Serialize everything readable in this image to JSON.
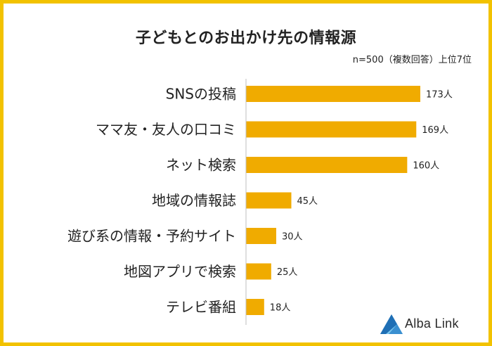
{
  "chart_data": {
    "type": "bar",
    "orientation": "horizontal",
    "title": "子どもとのお出かけ先の情報源",
    "subtitle": "n=500（複数回答）上位7位",
    "categories": [
      "SNSの投稿",
      "ママ友・友人の口コミ",
      "ネット検索",
      "地域の情報誌",
      "遊び系の情報・予約サイト",
      "地図アプリで検索",
      "テレビ番組"
    ],
    "values": [
      173,
      169,
      160,
      45,
      30,
      25,
      18
    ],
    "value_labels": [
      "173人",
      "169人",
      "160人",
      "45人",
      "30人",
      "25人",
      "18人"
    ],
    "xlim": [
      0,
      190
    ],
    "grid": false,
    "legend": "none"
  },
  "colors": {
    "bar": "#f0ab00",
    "frame": "#f2c200",
    "axis": "#bfbfbf",
    "logo_blue": "#1f6fb5",
    "logo_light": "#7bc6ee"
  },
  "logo": {
    "text": "Alba Link",
    "icon": "triangle-logo-icon"
  }
}
